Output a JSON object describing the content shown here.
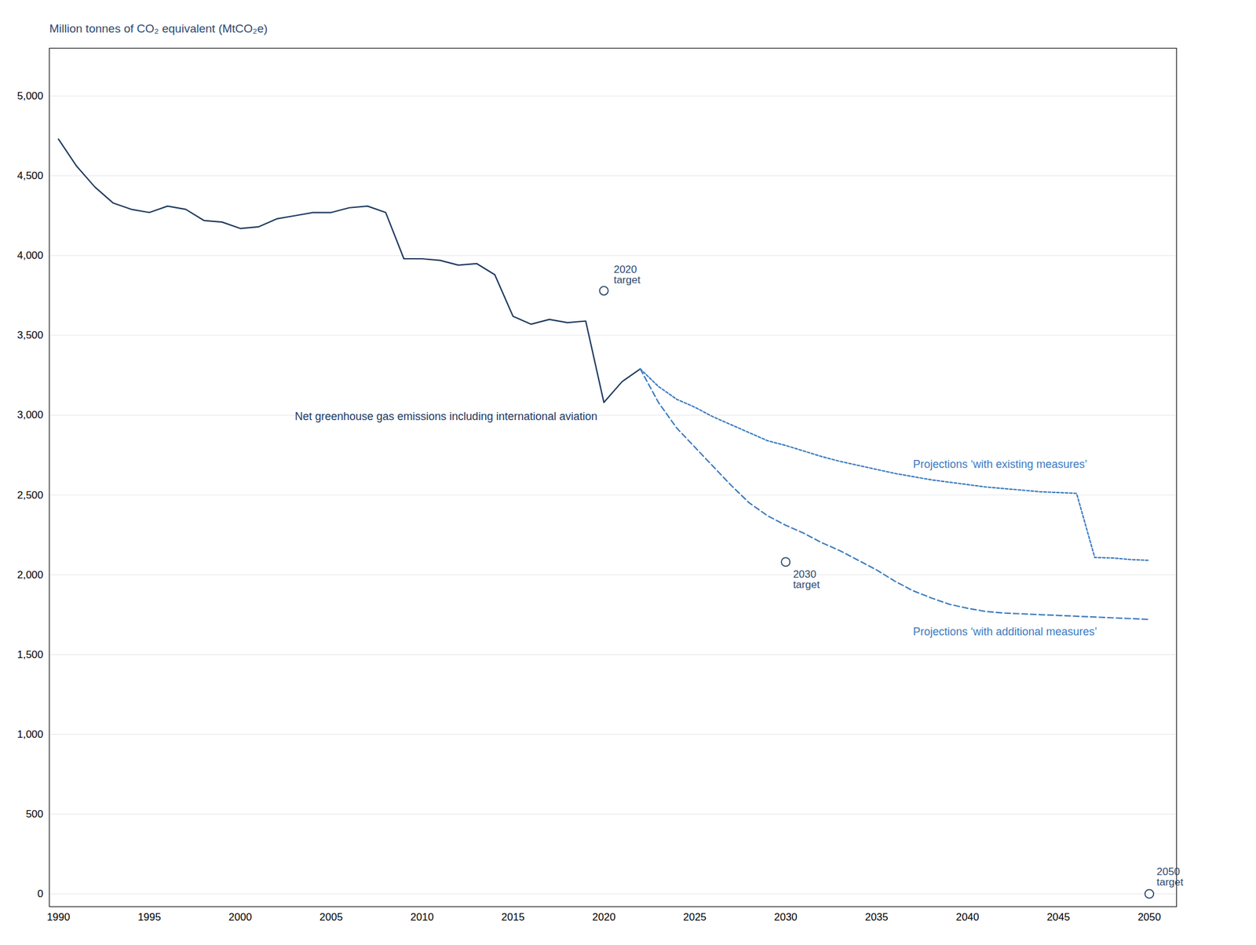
{
  "chart_data": {
    "type": "line",
    "ylabel": "Million tonnes of CO₂ equivalent (MtCO₂e)",
    "xlim": [
      1989.5,
      2051.5
    ],
    "ylim": [
      -80,
      5300
    ],
    "xticks": [
      1990,
      1995,
      2000,
      2005,
      2010,
      2015,
      2020,
      2025,
      2030,
      2035,
      2040,
      2045,
      2050
    ],
    "yticks": [
      0,
      500,
      {
        "value": 1000,
        "label": "1,000"
      },
      {
        "value": 1500,
        "label": "1,500"
      },
      {
        "value": 2000,
        "label": "2,000"
      },
      {
        "value": 2500,
        "label": "2,500"
      },
      {
        "value": 3000,
        "label": "3,000"
      },
      {
        "value": 3500,
        "label": "3,500"
      },
      {
        "value": 4000,
        "label": "4,000"
      },
      {
        "value": 4500,
        "label": "4,500"
      },
      {
        "value": 5000,
        "label": "5,000"
      }
    ],
    "grid": true,
    "series": [
      {
        "name": "Net greenhouse gas emissions including international aviation",
        "type": "line",
        "line_style": "solid",
        "color": "#1e3a5f",
        "x": [
          1990,
          1991,
          1992,
          1993,
          1994,
          1995,
          1996,
          1997,
          1998,
          1999,
          2000,
          2001,
          2002,
          2003,
          2004,
          2005,
          2006,
          2007,
          2008,
          2009,
          2010,
          2011,
          2012,
          2013,
          2014,
          2015,
          2016,
          2017,
          2018,
          2019,
          2020,
          2021,
          2022
        ],
        "values": [
          4730,
          4560,
          4430,
          4330,
          4290,
          4270,
          4310,
          4290,
          4220,
          4210,
          4170,
          4180,
          4230,
          4250,
          4270,
          4270,
          4300,
          4310,
          4270,
          3980,
          3980,
          3970,
          3940,
          3950,
          3880,
          3620,
          3570,
          3600,
          3580,
          3590,
          3080,
          3210,
          3290
        ]
      },
      {
        "name": "Projections ‘with existing measures’",
        "type": "line",
        "line_style": "dotted",
        "color": "#3a7abf",
        "x": [
          2022,
          2023,
          2024,
          2025,
          2026,
          2027,
          2028,
          2029,
          2030,
          2031,
          2032,
          2033,
          2034,
          2035,
          2036,
          2037,
          2038,
          2039,
          2040,
          2041,
          2042,
          2043,
          2044,
          2045,
          2046,
          2047,
          2048,
          2049,
          2050
        ],
        "values": [
          3290,
          3180,
          3100,
          3050,
          2990,
          2940,
          2890,
          2840,
          2810,
          2775,
          2740,
          2710,
          2685,
          2660,
          2635,
          2615,
          2595,
          2580,
          2565,
          2550,
          2540,
          2530,
          2520,
          2515,
          2510,
          2108,
          2105,
          2095,
          2090
        ]
      },
      {
        "name": "Projections ‘with additional measures’",
        "type": "line",
        "line_style": "dashed",
        "color": "#3a7abf",
        "x": [
          2022,
          2023,
          2024,
          2025,
          2026,
          2027,
          2028,
          2029,
          2030,
          2031,
          2032,
          2033,
          2034,
          2035,
          2036,
          2037,
          2038,
          2039,
          2040,
          2041,
          2042,
          2043,
          2044,
          2045,
          2046,
          2047,
          2048,
          2049,
          2050
        ],
        "values": [
          3290,
          3080,
          2920,
          2800,
          2680,
          2560,
          2450,
          2370,
          2310,
          2260,
          2200,
          2150,
          2090,
          2030,
          1960,
          1900,
          1855,
          1815,
          1790,
          1770,
          1760,
          1755,
          1750,
          1745,
          1740,
          1735,
          1730,
          1725,
          1720
        ]
      },
      {
        "name": "2020\ntarget",
        "type": "scatter",
        "marker": "circle",
        "color": "#2e4a6e",
        "x": [
          2020
        ],
        "values": [
          3780
        ]
      },
      {
        "name": "2030\ntarget",
        "type": "scatter",
        "marker": "circle",
        "color": "#2e4a6e",
        "x": [
          2030
        ],
        "values": [
          2080
        ]
      },
      {
        "name": "2050\ntarget",
        "type": "scatter",
        "marker": "circle",
        "color": "#2e4a6e",
        "x": [
          2050
        ],
        "values": [
          0
        ]
      }
    ]
  }
}
